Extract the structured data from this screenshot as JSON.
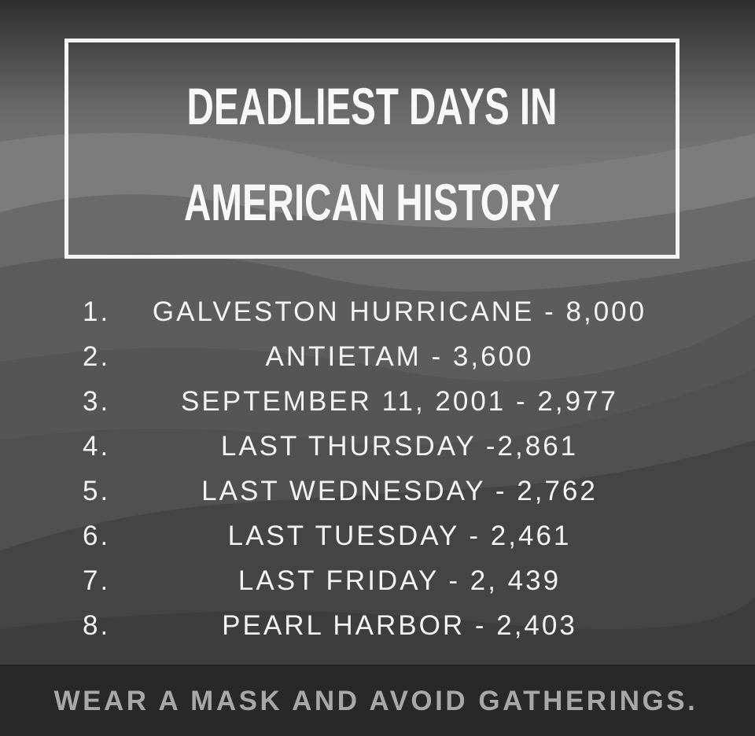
{
  "title": {
    "line1": "DEADLIEST DAYS IN",
    "line2": "AMERICAN HISTORY"
  },
  "list": [
    {
      "num": "1.",
      "text": "GALVESTON HURRICANE - 8,000"
    },
    {
      "num": "2.",
      "text": "ANTIETAM - 3,600"
    },
    {
      "num": "3.",
      "text": "SEPTEMBER 11, 2001 - 2,977"
    },
    {
      "num": "4.",
      "text": "LAST THURSDAY -2,861"
    },
    {
      "num": "5.",
      "text": "LAST WEDNESDAY - 2,762"
    },
    {
      "num": "6.",
      "text": "LAST TUESDAY - 2,461"
    },
    {
      "num": "7.",
      "text": "LAST FRIDAY - 2, 439"
    },
    {
      "num": "8.",
      "text": "PEARL HARBOR - 2,403"
    }
  ],
  "footer": "WEAR A MASK AND AVOID GATHERINGS."
}
